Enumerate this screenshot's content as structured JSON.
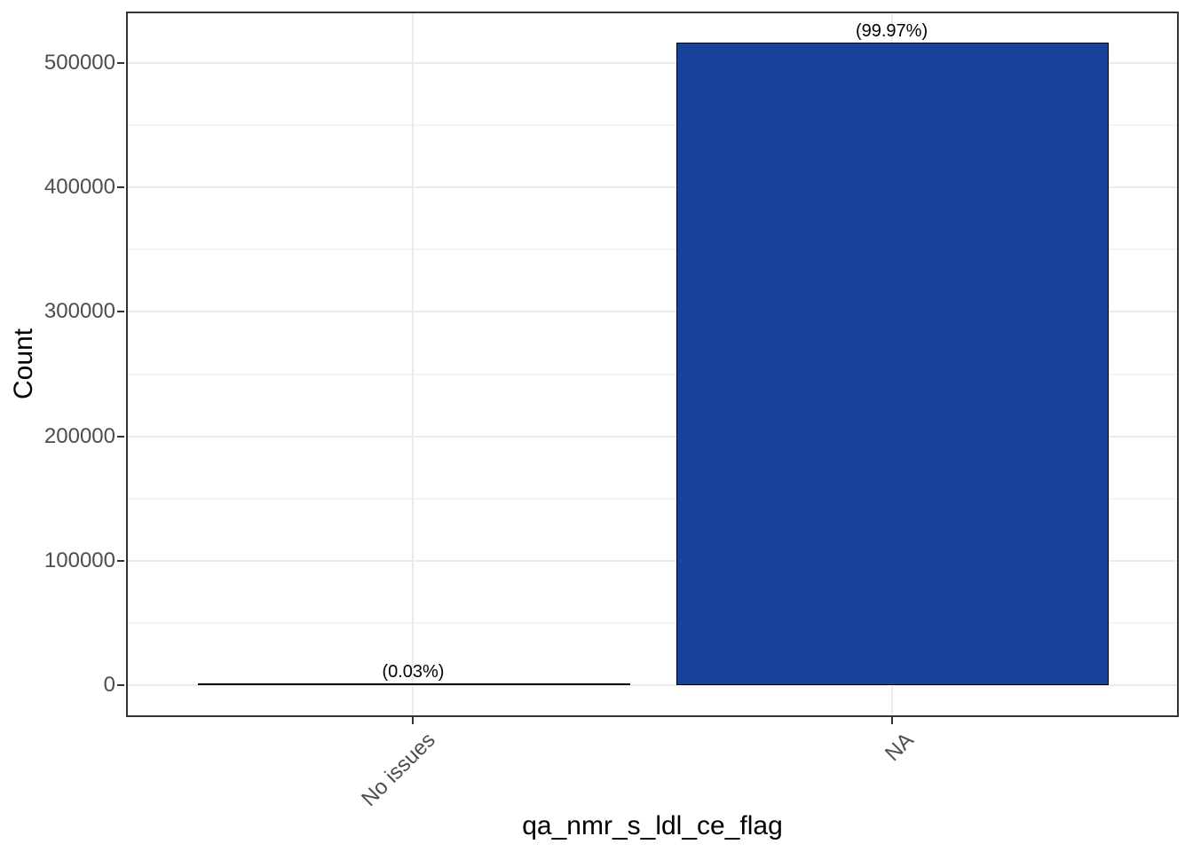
{
  "chart_data": {
    "type": "bar",
    "title": "",
    "xlabel": "qa_nmr_s_ldl_ce_flag",
    "ylabel": "Count",
    "categories": [
      "No issues",
      "NA"
    ],
    "values": [
      155,
      515700
    ],
    "bar_labels": [
      "(0.03%)",
      "(99.97%)"
    ],
    "percentages": [
      0.03,
      99.97
    ],
    "y_tick_labels": [
      "0",
      "100000",
      "200000",
      "300000",
      "400000",
      "500000"
    ],
    "y_major_breaks": [
      0,
      100000,
      200000,
      300000,
      400000,
      500000
    ],
    "y_minor_breaks": [
      50000,
      150000,
      250000,
      350000,
      450000
    ],
    "ylim_expanded": [
      -25800,
      541500
    ],
    "bar_width_fraction": 0.9,
    "grid": {
      "horizontal_major": true,
      "horizontal_minor": true,
      "vertical_major": true,
      "vertical_minor": false
    },
    "legend": "none"
  },
  "colors": {
    "bar_fill": "#17449A",
    "bar_stroke": "#000000",
    "grid_major": "#EBEBEB",
    "grid_minor": "#F3F3F3",
    "panel_border": "#333333",
    "tick_mark": "#333333",
    "tick_label": "#4D4D4D",
    "axis_title": "#000000",
    "bar_label_color": "#000000",
    "background": "#FFFFFF"
  }
}
